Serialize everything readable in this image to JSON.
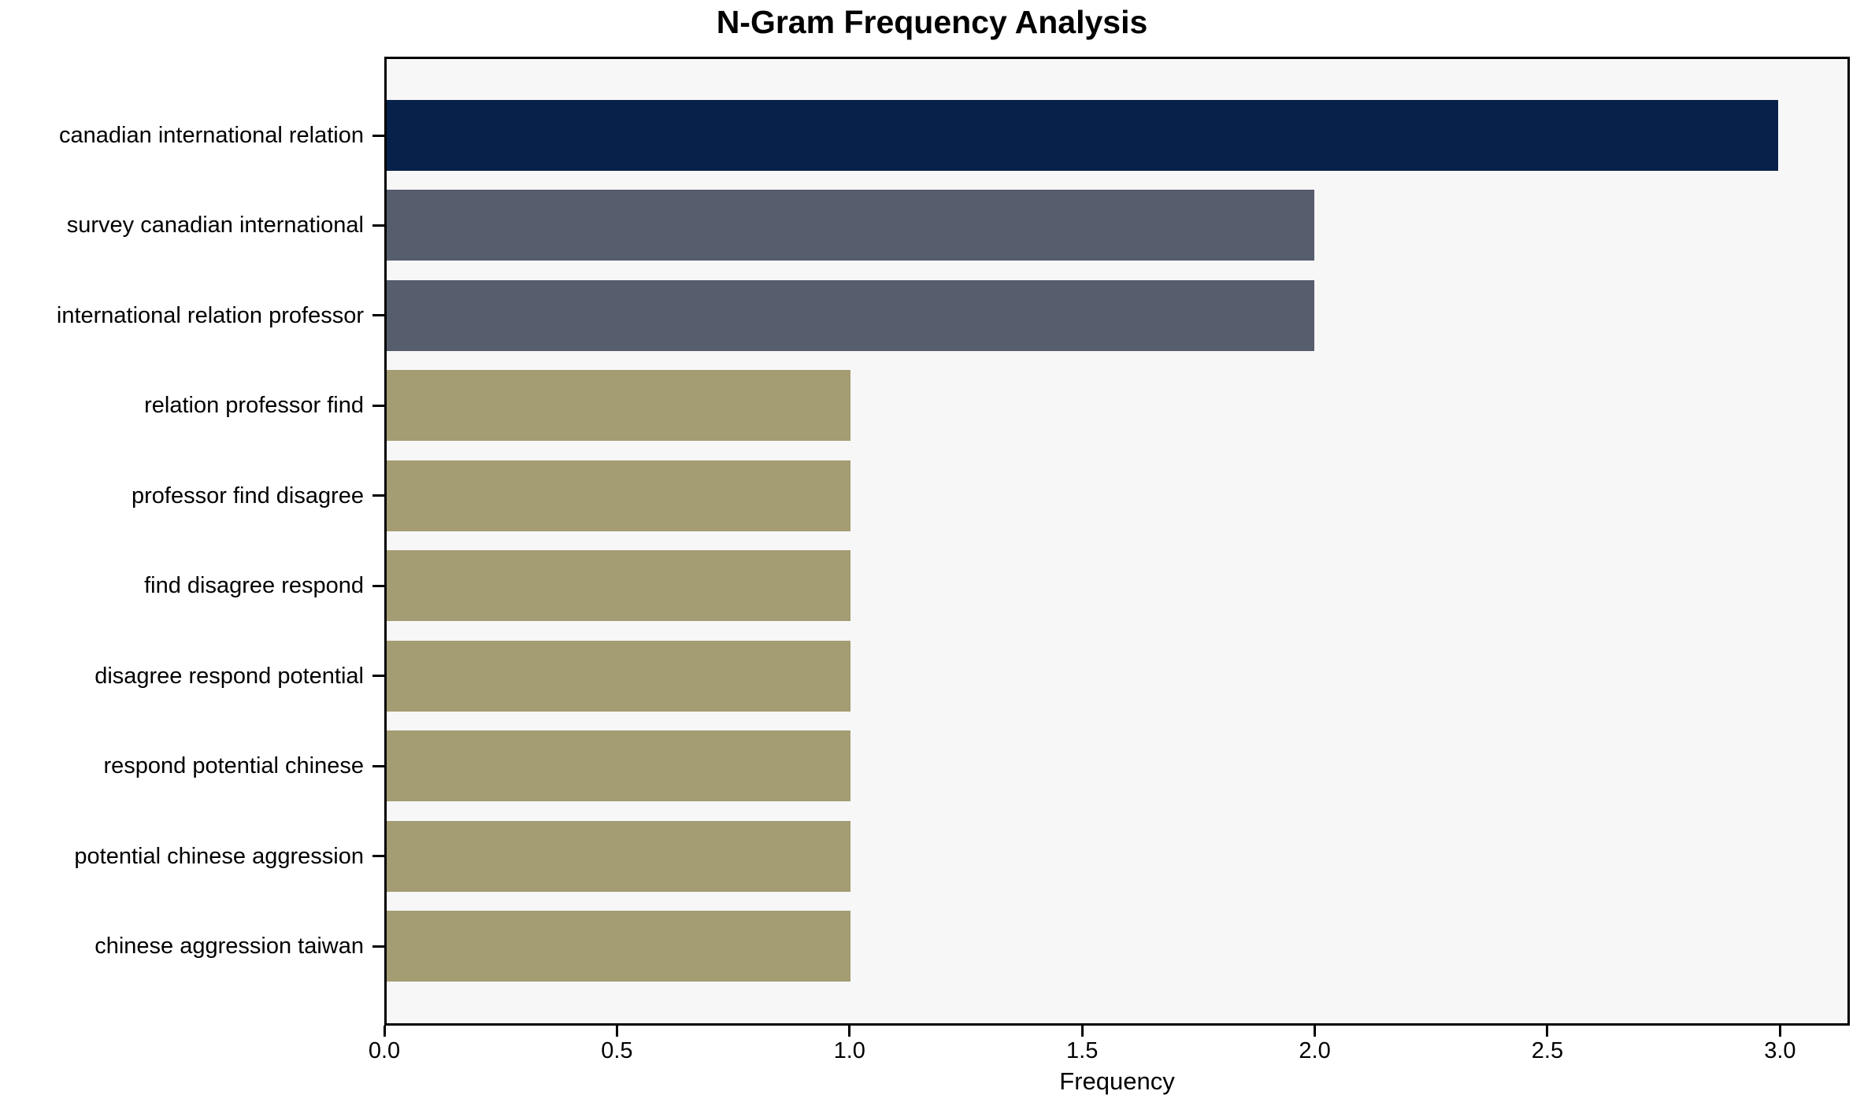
{
  "chart_data": {
    "type": "bar",
    "orientation": "horizontal",
    "title": "N-Gram Frequency Analysis",
    "xlabel": "Frequency",
    "ylabel": "",
    "categories": [
      "canadian international relation",
      "survey canadian international",
      "international relation professor",
      "relation professor find",
      "professor find disagree",
      "find disagree respond",
      "disagree respond potential",
      "respond potential chinese",
      "potential chinese aggression",
      "chinese aggression taiwan"
    ],
    "values": [
      3,
      2,
      2,
      1,
      1,
      1,
      1,
      1,
      1,
      1
    ],
    "bar_colors": [
      "#08214a",
      "#565d6d",
      "#565d6d",
      "#a49c72",
      "#a49c72",
      "#a49c72",
      "#a49c72",
      "#a49c72",
      "#a49c72",
      "#a49c72"
    ],
    "xlim": [
      0,
      3.15
    ],
    "xticks": {
      "values": [
        0,
        0.5,
        1.0,
        1.5,
        2.0,
        2.5,
        3.0
      ],
      "labels": [
        "0.0",
        "0.5",
        "1.0",
        "1.5",
        "2.0",
        "2.5",
        "3.0"
      ]
    },
    "grid": false,
    "legend": null,
    "colors": {
      "plot_background": "#f7f7f8",
      "figure_background": "#ffffff",
      "axis": "#000000",
      "text": "#000000"
    }
  }
}
